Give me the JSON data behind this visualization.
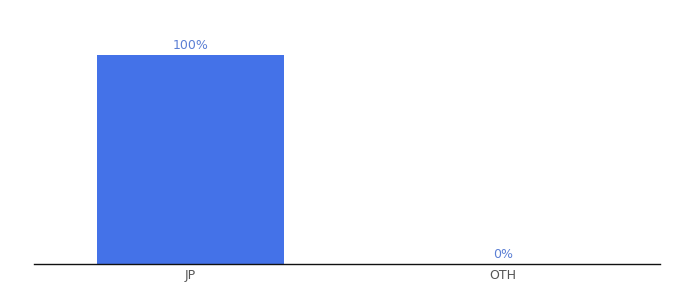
{
  "categories": [
    "JP",
    "OTH"
  ],
  "values": [
    100,
    0
  ],
  "bar_color": "#4472e8",
  "label_color": "#5b7fd4",
  "label_fontsize": 9,
  "tick_fontsize": 9,
  "tick_color": "#555555",
  "bar_width": 0.6,
  "ylim": [
    0,
    115
  ],
  "xlim": [
    -0.5,
    1.5
  ],
  "background_color": "#ffffff",
  "axis_line_color": "#111111",
  "value_labels": [
    "100%",
    "0%"
  ]
}
